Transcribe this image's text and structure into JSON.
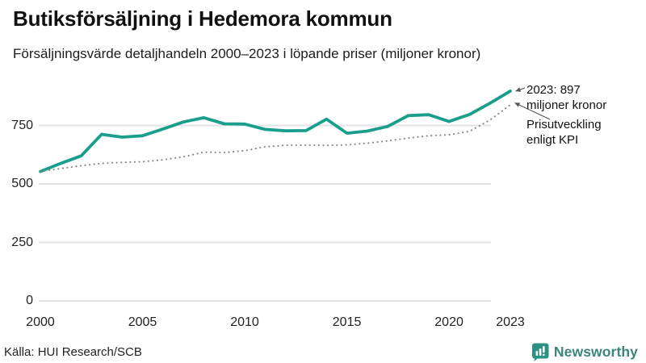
{
  "header": {
    "title": "Butiksförsäljning i Hedemora kommun",
    "subtitle": "Försäljningsvärde detaljhandeln 2000–2023 i löpande priser (miljoner kronor)"
  },
  "chart_data": {
    "type": "line",
    "x": [
      2000,
      2001,
      2002,
      2003,
      2004,
      2005,
      2006,
      2007,
      2008,
      2009,
      2010,
      2011,
      2012,
      2013,
      2014,
      2015,
      2016,
      2017,
      2018,
      2019,
      2020,
      2021,
      2022,
      2023
    ],
    "series": [
      {
        "name": "Butiksförsäljning i löpande priser (miljoner kronor)",
        "style": "solid",
        "color": "#1a9e8c",
        "values": [
          553,
          588,
          620,
          712,
          700,
          706,
          735,
          765,
          783,
          757,
          756,
          733,
          727,
          728,
          777,
          717,
          726,
          746,
          792,
          796,
          767,
          797,
          845,
          897
        ]
      },
      {
        "name": "Prisutveckling enligt KPI",
        "style": "dotted",
        "color": "#8c8c8c",
        "values": [
          553,
          566,
          578,
          588,
          592,
          595,
          603,
          616,
          636,
          634,
          642,
          659,
          665,
          666,
          665,
          667,
          674,
          684,
          696,
          706,
          710,
          725,
          773,
          838
        ]
      }
    ],
    "xticks": [
      2000,
      2005,
      2010,
      2015,
      2020,
      2023
    ],
    "yticks": [
      0,
      250,
      500,
      750
    ],
    "ylim": [
      0,
      930
    ],
    "xlabel": "",
    "ylabel": "",
    "grid": "horizontal-only",
    "legend": "none (direct annotations with arrows)",
    "title": "Butiksförsäljning i Hedemora kommun",
    "subtitle": "Försäljningsvärde detaljhandeln 2000–2023 i löpande priser (miljoner kronor)",
    "last_value_2023": 897
  },
  "annotations": {
    "value_label": "2023: 897\nmiljoner kronor",
    "kpi_label": "Prisutveckling\nenligt KPI"
  },
  "footer": {
    "source": "Källa: HUI Research/SCB",
    "brand": "Newsworthy"
  },
  "colors": {
    "accent": "#1a9e8c",
    "kpi_line": "#8c8c8c",
    "grid": "#e3e3e8",
    "arrow": "#555555",
    "brand": "#3d857a",
    "text": "#111111"
  }
}
